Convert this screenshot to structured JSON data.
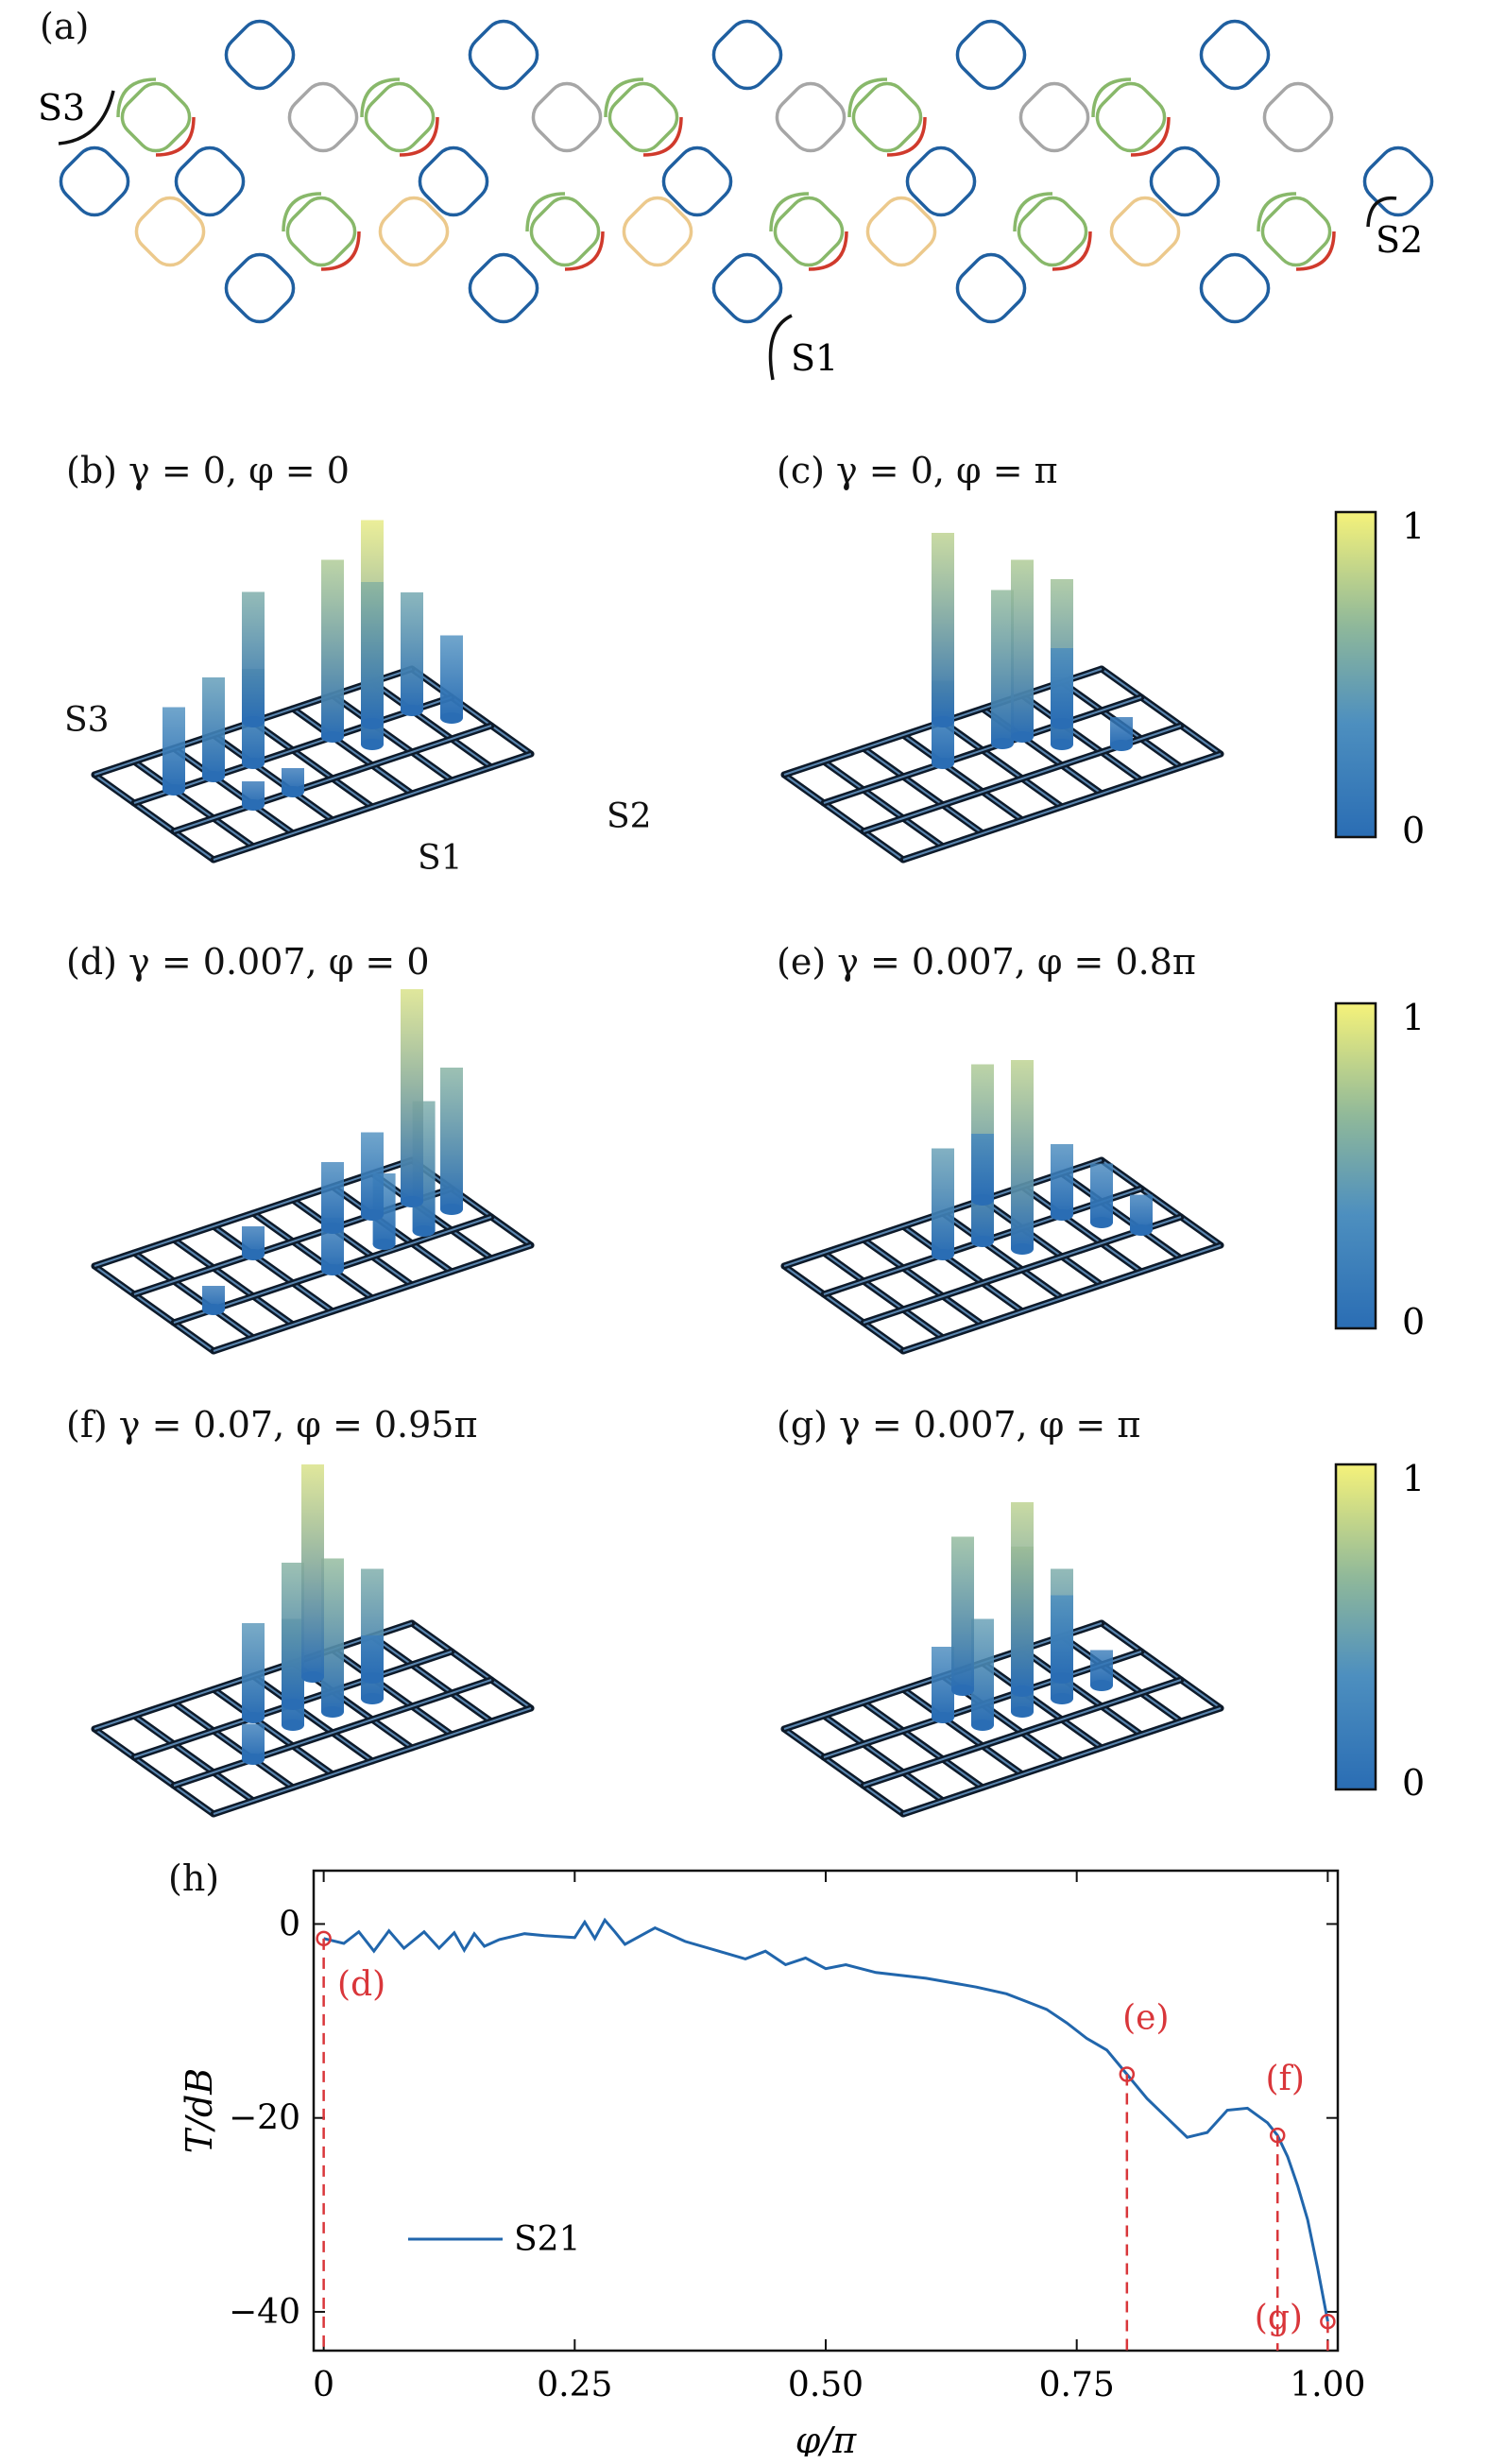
{
  "panel_a": {
    "label": "(a)",
    "ports": [
      "S3",
      "S2",
      "S1"
    ]
  },
  "panels_3d": [
    {
      "label": "(b) γ = 0, φ = 0"
    },
    {
      "label": "(c) γ = 0, φ = π"
    },
    {
      "label": "(d) γ = 0.007, φ = 0"
    },
    {
      "label": "(e) γ = 0.007, φ = 0.8π"
    },
    {
      "label": "(f) γ = 0.07, φ = 0.95π"
    },
    {
      "label": "(g) γ = 0.007, φ = π"
    }
  ],
  "panel_b_ports": {
    "s3": "S3",
    "s1": "S1",
    "s2": "S2"
  },
  "colorbars": [
    {
      "top": "1",
      "bottom": "0"
    },
    {
      "top": "1",
      "bottom": "0"
    },
    {
      "top": "1",
      "bottom": "0"
    }
  ],
  "colors": {
    "blue": "#1f5fa0",
    "green": "#88b86a",
    "red": "#d03a2c",
    "gray": "#a6a6a6",
    "beige": "#ecc98c",
    "marker": "#d9363a",
    "line": "#2166ac"
  },
  "chart_data": {
    "type": "line",
    "panel_label": "(h)",
    "xlabel": "φ/π",
    "ylabel": "T/dB",
    "xlim": [
      -0.01,
      1.01
    ],
    "ylim": [
      -44,
      5.5
    ],
    "x_ticks": [
      0,
      0.25,
      0.5,
      0.75,
      1.0
    ],
    "x_tick_labels": [
      "0",
      "0.25",
      "0.50",
      "0.75",
      "1.00"
    ],
    "y_ticks": [
      0,
      -20,
      -40
    ],
    "y_tick_labels": [
      "0",
      "−20",
      "−40"
    ],
    "legend": {
      "placement": "bottom-left"
    },
    "series": [
      {
        "name": "S21",
        "x": [
          0,
          0.02,
          0.035,
          0.05,
          0.065,
          0.08,
          0.1,
          0.115,
          0.13,
          0.14,
          0.15,
          0.16,
          0.175,
          0.2,
          0.22,
          0.25,
          0.26,
          0.27,
          0.28,
          0.29,
          0.3,
          0.33,
          0.36,
          0.4,
          0.42,
          0.44,
          0.46,
          0.48,
          0.5,
          0.52,
          0.55,
          0.6,
          0.65,
          0.68,
          0.7,
          0.72,
          0.74,
          0.76,
          0.78,
          0.8,
          0.82,
          0.84,
          0.86,
          0.88,
          0.9,
          0.92,
          0.94,
          0.95,
          0.96,
          0.97,
          0.98,
          0.99,
          1.0
        ],
        "y": [
          -1.5,
          -2,
          -0.8,
          -2.8,
          -0.7,
          -2.5,
          -0.8,
          -2.5,
          -0.9,
          -2.7,
          -1.0,
          -2.3,
          -1.6,
          -1.0,
          -1.2,
          -1.4,
          0.2,
          -1.5,
          0.4,
          -0.8,
          -2.1,
          -0.4,
          -1.8,
          -3.0,
          -3.6,
          -2.8,
          -4.2,
          -3.5,
          -4.6,
          -4.2,
          -5.0,
          -5.6,
          -6.5,
          -7.2,
          -8.0,
          -8.8,
          -10.2,
          -11.8,
          -13.0,
          -15.5,
          -18.0,
          -20.0,
          -22.0,
          -21.5,
          -19.2,
          -19.0,
          -20.5,
          -21.8,
          -24.0,
          -27.0,
          -30.5,
          -35.5,
          -41.0
        ]
      }
    ],
    "markers": [
      {
        "label": "(d)",
        "x": 0.0,
        "y": -1.5
      },
      {
        "label": "(e)",
        "x": 0.8,
        "y": -15.5
      },
      {
        "label": "(f)",
        "x": 0.95,
        "y": -21.8
      },
      {
        "label": "(g)",
        "x": 1.0,
        "y": -41.0
      }
    ]
  }
}
